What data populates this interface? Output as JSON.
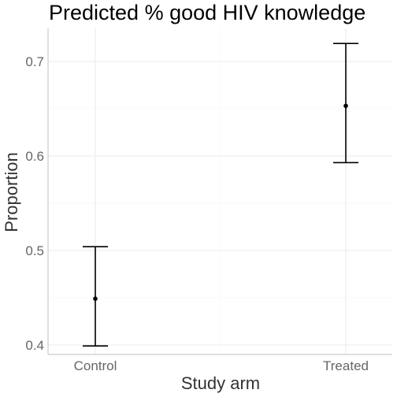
{
  "chart_data": {
    "type": "errorbar",
    "title": "Predicted % good HIV knowledge",
    "xlabel": "Study arm",
    "ylabel": "Proportion",
    "categories": [
      "Control",
      "Treated"
    ],
    "points": [
      {
        "category": "Control",
        "estimate": 0.449,
        "lower": 0.399,
        "upper": 0.504
      },
      {
        "category": "Treated",
        "estimate": 0.653,
        "lower": 0.593,
        "upper": 0.719
      }
    ],
    "y_ticks": [
      "0.4",
      "0.5",
      "0.6",
      "0.7"
    ],
    "ylim": [
      0.39,
      0.735
    ],
    "grid": true,
    "legend": "none"
  }
}
